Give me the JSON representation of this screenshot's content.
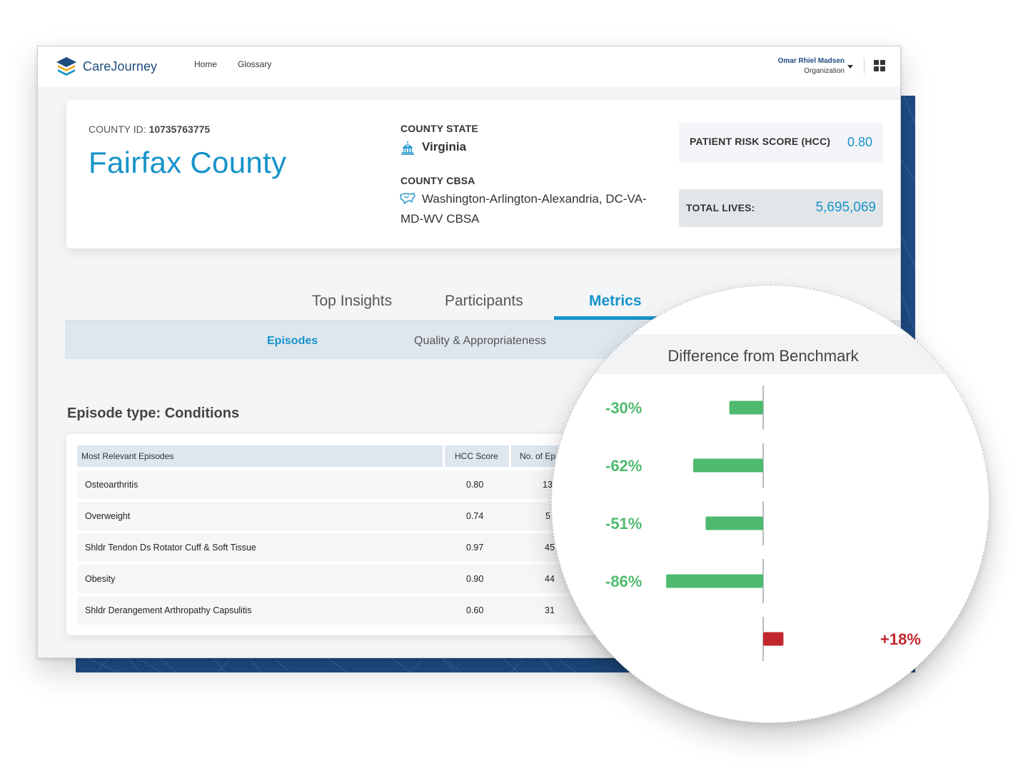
{
  "header": {
    "brand": "CareJourney",
    "nav": [
      "Home",
      "Glossary"
    ],
    "user_name": "Omar Rhiel Madsen",
    "user_org": "Organization"
  },
  "county": {
    "id_label": "COUNTY ID:",
    "id_value": "10735763775",
    "name": "Fairfax County",
    "state_label": "COUNTY STATE",
    "state_value": "Virginia",
    "cbsa_label": "COUNTY CBSA",
    "cbsa_line1": "Washington-Arlington-Alexandria, DC-VA-",
    "cbsa_line2": "MD-WV CBSA",
    "risk_label": "PATIENT RISK SCORE (HCC)",
    "risk_value": "0.80",
    "lives_label": "TOTAL LIVES:",
    "lives_value": "5,695,069"
  },
  "tabs": [
    "Top Insights",
    "Participants",
    "Metrics"
  ],
  "active_tab": "Metrics",
  "subtabs": [
    "Episodes",
    "Quality & Appropriateness"
  ],
  "active_subtab": "Episodes",
  "section_title": "Episode type: Conditions",
  "table": {
    "headers": [
      "Most Relevant Episodes",
      "HCC Score",
      "No. of Ep"
    ],
    "rows": [
      {
        "episode": "Osteoarthritis",
        "hcc": "0.80",
        "count": "13"
      },
      {
        "episode": "Overweight",
        "hcc": "0.74",
        "count": "5"
      },
      {
        "episode": "Shldr Tendon Ds Rotator Cuff & Soft Tissue",
        "hcc": "0.97",
        "count": "45"
      },
      {
        "episode": "Obesity",
        "hcc": "0.90",
        "count": "44"
      },
      {
        "episode": "Shldr Derangement Arthropathy Capsulitis",
        "hcc": "0.60",
        "count": "31"
      }
    ]
  },
  "colors": {
    "accent": "#1793c9",
    "brand_navy": "#1d4c7f",
    "negative_green": "#4fba6f",
    "positive_red": "#c1272d"
  },
  "chart_data": {
    "type": "bar",
    "orientation": "horizontal",
    "title": "Difference from Benchmark",
    "categories": [
      "Osteoarthritis",
      "Overweight",
      "Shldr Tendon Ds Rotator Cuff & Soft Tissue",
      "Obesity",
      "Shldr Derangement Arthropathy Capsulitis"
    ],
    "values": [
      -30,
      -62,
      -51,
      -86,
      18
    ],
    "labels": [
      "-30%",
      "-62%",
      "-51%",
      "-86%",
      "+18%"
    ],
    "unit": "%",
    "xlim": [
      -100,
      100
    ],
    "grid": false
  }
}
